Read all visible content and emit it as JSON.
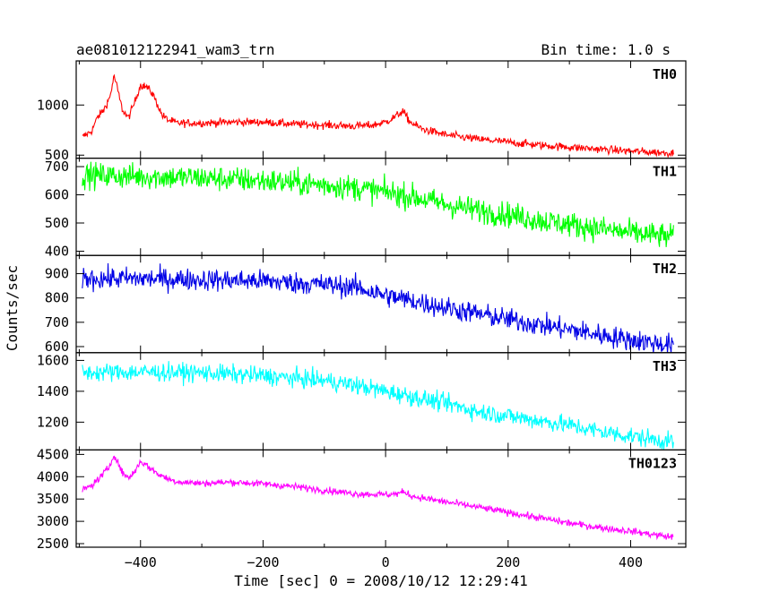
{
  "header": {
    "left": "ae081012122941_wam3_trn",
    "right": "Bin time: 1.0 s"
  },
  "chart_data": {
    "type": "line",
    "ylabel": "Counts/sec",
    "xlabel": "Time [sec] 0 = 2008/10/12 12:29:41",
    "xlim": [
      -505,
      490
    ],
    "xticks": [
      -400,
      -200,
      0,
      200,
      400
    ],
    "x_range": [
      -495,
      470
    ],
    "panels": [
      {
        "name": "TH0",
        "color": "#ff0000",
        "ylim": [
          470,
          1440
        ],
        "yticks": [
          500,
          1000
        ],
        "noise": 28,
        "points": [
          [
            -495,
            680
          ],
          [
            -480,
            740
          ],
          [
            -470,
            880
          ],
          [
            -460,
            950
          ],
          [
            -450,
            1080
          ],
          [
            -443,
            1290
          ],
          [
            -438,
            1170
          ],
          [
            -430,
            960
          ],
          [
            -420,
            870
          ],
          [
            -410,
            1020
          ],
          [
            -400,
            1200
          ],
          [
            -390,
            1180
          ],
          [
            -380,
            1110
          ],
          [
            -372,
            1000
          ],
          [
            -365,
            900
          ],
          [
            -355,
            850
          ],
          [
            -340,
            820
          ],
          [
            -300,
            820
          ],
          [
            -250,
            830
          ],
          [
            -200,
            830
          ],
          [
            -150,
            810
          ],
          [
            -100,
            800
          ],
          [
            -50,
            790
          ],
          [
            -20,
            800
          ],
          [
            0,
            830
          ],
          [
            15,
            880
          ],
          [
            28,
            940
          ],
          [
            40,
            830
          ],
          [
            60,
            760
          ],
          [
            100,
            700
          ],
          [
            150,
            660
          ],
          [
            200,
            630
          ],
          [
            250,
            600
          ],
          [
            300,
            580
          ],
          [
            350,
            560
          ],
          [
            400,
            540
          ],
          [
            470,
            520
          ]
        ]
      },
      {
        "name": "TH1",
        "color": "#00ff00",
        "ylim": [
          385,
          730
        ],
        "yticks": [
          400,
          500,
          600,
          700
        ],
        "noise": 32,
        "points": [
          [
            -495,
            670
          ],
          [
            -400,
            665
          ],
          [
            -300,
            660
          ],
          [
            -200,
            650
          ],
          [
            -100,
            635
          ],
          [
            -50,
            625
          ],
          [
            0,
            610
          ],
          [
            50,
            590
          ],
          [
            100,
            565
          ],
          [
            150,
            545
          ],
          [
            200,
            530
          ],
          [
            250,
            510
          ],
          [
            300,
            495
          ],
          [
            350,
            480
          ],
          [
            400,
            465
          ],
          [
            470,
            450
          ]
        ]
      },
      {
        "name": "TH2",
        "color": "#0000e6",
        "ylim": [
          575,
          975
        ],
        "yticks": [
          600,
          700,
          800,
          900
        ],
        "noise": 32,
        "points": [
          [
            -495,
            880
          ],
          [
            -400,
            880
          ],
          [
            -300,
            875
          ],
          [
            -200,
            870
          ],
          [
            -100,
            855
          ],
          [
            -50,
            845
          ],
          [
            0,
            810
          ],
          [
            50,
            785
          ],
          [
            100,
            760
          ],
          [
            150,
            735
          ],
          [
            200,
            712
          ],
          [
            250,
            690
          ],
          [
            300,
            670
          ],
          [
            350,
            648
          ],
          [
            400,
            628
          ],
          [
            470,
            605
          ]
        ]
      },
      {
        "name": "TH3",
        "color": "#00ffff",
        "ylim": [
          1020,
          1650
        ],
        "yticks": [
          1200,
          1400,
          1600
        ],
        "noise": 42,
        "points": [
          [
            -495,
            1520
          ],
          [
            -400,
            1525
          ],
          [
            -300,
            1520
          ],
          [
            -200,
            1500
          ],
          [
            -100,
            1470
          ],
          [
            -50,
            1440
          ],
          [
            0,
            1400
          ],
          [
            50,
            1360
          ],
          [
            100,
            1320
          ],
          [
            150,
            1270
          ],
          [
            200,
            1240
          ],
          [
            250,
            1210
          ],
          [
            300,
            1180
          ],
          [
            350,
            1140
          ],
          [
            400,
            1110
          ],
          [
            470,
            1070
          ]
        ]
      },
      {
        "name": "TH0123",
        "color": "#ff00ff",
        "ylim": [
          2420,
          4600
        ],
        "yticks": [
          2500,
          3000,
          3500,
          4000,
          4500
        ],
        "noise": 55,
        "points": [
          [
            -495,
            3700
          ],
          [
            -480,
            3800
          ],
          [
            -465,
            4000
          ],
          [
            -452,
            4200
          ],
          [
            -443,
            4500
          ],
          [
            -436,
            4280
          ],
          [
            -428,
            4050
          ],
          [
            -418,
            3980
          ],
          [
            -408,
            4150
          ],
          [
            -400,
            4350
          ],
          [
            -390,
            4250
          ],
          [
            -380,
            4150
          ],
          [
            -370,
            4050
          ],
          [
            -355,
            3950
          ],
          [
            -340,
            3890
          ],
          [
            -300,
            3850
          ],
          [
            -250,
            3880
          ],
          [
            -200,
            3840
          ],
          [
            -150,
            3780
          ],
          [
            -100,
            3700
          ],
          [
            -50,
            3620
          ],
          [
            0,
            3600
          ],
          [
            20,
            3620
          ],
          [
            30,
            3660
          ],
          [
            45,
            3560
          ],
          [
            100,
            3430
          ],
          [
            150,
            3320
          ],
          [
            200,
            3200
          ],
          [
            250,
            3080
          ],
          [
            300,
            2960
          ],
          [
            350,
            2860
          ],
          [
            400,
            2780
          ],
          [
            470,
            2640
          ]
        ]
      }
    ]
  }
}
